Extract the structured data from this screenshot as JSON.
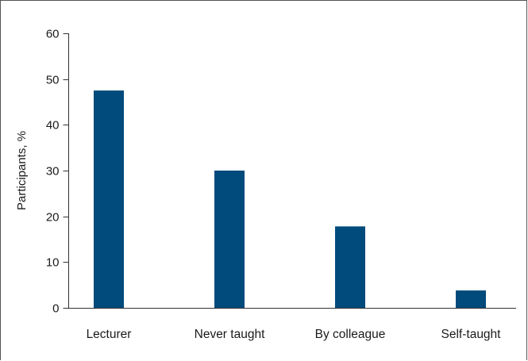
{
  "chart_data": {
    "type": "bar",
    "title": "",
    "xlabel": "",
    "ylabel": "Participants, %",
    "categories": [
      "Lecturer",
      "Never taught",
      "By colleague",
      "Self-taught"
    ],
    "values": [
      47.5,
      30,
      17.8,
      3.8
    ],
    "ylim": [
      0,
      60
    ],
    "yticks": [
      0,
      10,
      20,
      30,
      40,
      50,
      60
    ],
    "grid": false,
    "legend": "none",
    "bar_color": "#004a7c",
    "axis_color": "#333333"
  }
}
